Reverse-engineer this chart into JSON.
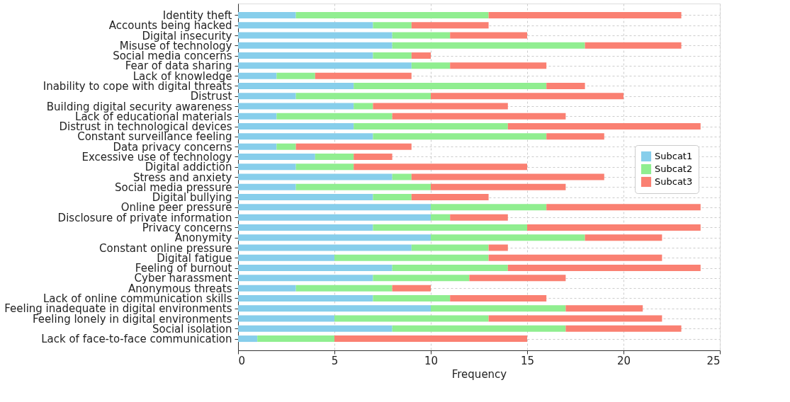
{
  "chart_data": {
    "type": "bar",
    "orientation": "horizontal",
    "stacked": true,
    "xlabel": "Frequency",
    "categories": [
      "Identity theft",
      "Accounts being hacked",
      "Digital insecurity",
      "Misuse of technology",
      "Social media concerns",
      "Fear of data sharing",
      "Lack of knowledge",
      "Inability to cope with digital threats",
      "Distrust",
      "Building digital security awareness",
      "Lack of educational materials",
      "Distrust in technological devices",
      "Constant surveillance feeling",
      "Data privacy concerns",
      "Excessive use of technology",
      "Digital addiction",
      "Stress and anxiety",
      "Social media pressure",
      "Digital bullying",
      "Online peer pressure",
      "Disclosure of private information",
      "Privacy concerns",
      "Anonymity",
      "Constant online pressure",
      "Digital fatigue",
      "Feeling of burnout",
      "Cyber harassment",
      "Anonymous threats",
      "Lack of online communication skills",
      "Feeling inadequate in digital environments",
      "Feeling lonely in digital environments",
      "Social isolation",
      "Lack of face-to-face communication"
    ],
    "series": [
      {
        "name": "Subcat1",
        "color": "#87ceeb",
        "values": [
          3,
          7,
          8,
          8,
          7,
          9,
          2,
          6,
          3,
          6,
          2,
          6,
          7,
          2,
          4,
          3,
          8,
          3,
          7,
          10,
          10,
          7,
          10,
          9,
          5,
          8,
          7,
          3,
          7,
          10,
          5,
          8,
          1
        ]
      },
      {
        "name": "Subcat2",
        "color": "#90ee90",
        "values": [
          10,
          2,
          3,
          10,
          2,
          2,
          2,
          10,
          7,
          1,
          6,
          8,
          9,
          1,
          2,
          3,
          1,
          7,
          2,
          6,
          1,
          8,
          8,
          4,
          8,
          6,
          5,
          5,
          4,
          7,
          8,
          9,
          4
        ]
      },
      {
        "name": "Subcat3",
        "color": "#fa8072",
        "values": [
          10,
          4,
          4,
          5,
          1,
          5,
          5,
          2,
          10,
          7,
          9,
          10,
          3,
          6,
          2,
          9,
          10,
          7,
          4,
          8,
          3,
          9,
          4,
          1,
          9,
          10,
          5,
          2,
          5,
          4,
          9,
          6,
          10
        ]
      }
    ],
    "xlim": [
      0,
      25
    ],
    "xticks": [
      0,
      5,
      10,
      15,
      20,
      25
    ],
    "grid": true,
    "legend": "right"
  }
}
